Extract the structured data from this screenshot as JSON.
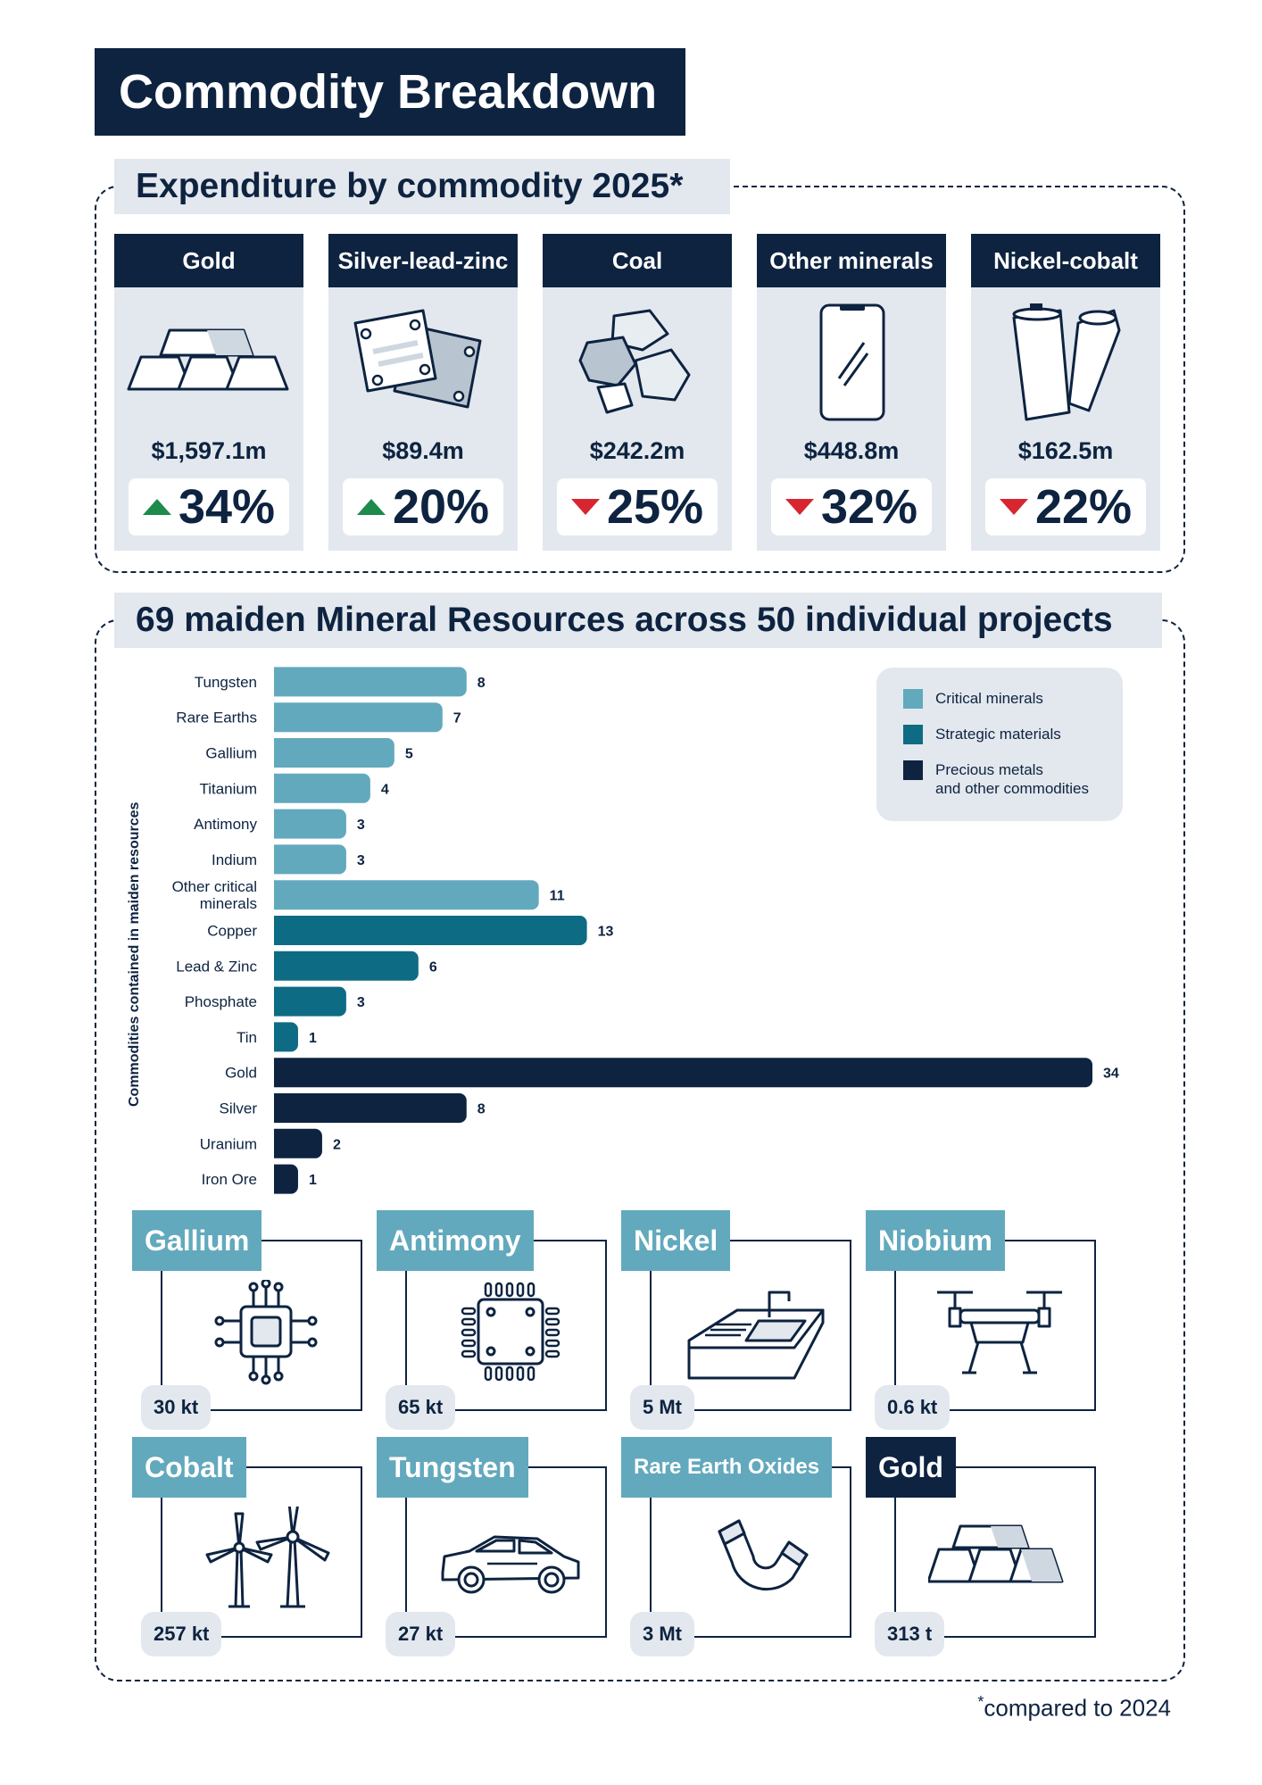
{
  "title": "Commodity Breakdown",
  "expenditure": {
    "title": "Expenditure by commodity 2025",
    "title_mark": "*",
    "cards": [
      {
        "name": "Gold",
        "amount": "$1,597.1m",
        "change": "34%",
        "direction": "up",
        "icon": "gold-bars-icon"
      },
      {
        "name": "Silver-lead-zinc",
        "amount": "$89.4m",
        "change": "20%",
        "direction": "up",
        "icon": "metal-plates-icon"
      },
      {
        "name": "Coal",
        "amount": "$242.2m",
        "change": "25%",
        "direction": "down",
        "icon": "coal-rocks-icon"
      },
      {
        "name": "Other minerals",
        "amount": "$448.8m",
        "change": "32%",
        "direction": "down",
        "icon": "smartphone-icon"
      },
      {
        "name": "Nickel-cobalt",
        "amount": "$162.5m",
        "change": "22%",
        "direction": "down",
        "icon": "batteries-icon"
      }
    ],
    "colors": {
      "up": "#1e8a4c",
      "down": "#d7262f"
    }
  },
  "resources": {
    "title": "69 maiden Mineral Resources across 50 individual projects"
  },
  "chart_data": {
    "type": "bar",
    "orientation": "horizontal",
    "ylabel": "Commodities contained in maiden resources",
    "categories": [
      "Tungsten",
      "Rare Earths",
      "Gallium",
      "Titanium",
      "Antimony",
      "Indium",
      "Other critical minerals",
      "Copper",
      "Lead & Zinc",
      "Phosphate",
      "Tin",
      "Gold",
      "Silver",
      "Uranium",
      "Iron Ore"
    ],
    "category_lines": [
      [
        "Tungsten"
      ],
      [
        "Rare Earths"
      ],
      [
        "Gallium"
      ],
      [
        "Titanium"
      ],
      [
        "Antimony"
      ],
      [
        "Indium"
      ],
      [
        "Other critical",
        "minerals"
      ],
      [
        "Copper"
      ],
      [
        "Lead & Zinc"
      ],
      [
        "Phosphate"
      ],
      [
        "Tin"
      ],
      [
        "Gold"
      ],
      [
        "Silver"
      ],
      [
        "Uranium"
      ],
      [
        "Iron Ore"
      ]
    ],
    "values": [
      8,
      7,
      5,
      4,
      3,
      3,
      11,
      13,
      6,
      3,
      1,
      34,
      8,
      2,
      1
    ],
    "groups": [
      "critical",
      "critical",
      "critical",
      "critical",
      "critical",
      "critical",
      "critical",
      "strategic",
      "strategic",
      "strategic",
      "strategic",
      "precious",
      "precious",
      "precious",
      "precious"
    ],
    "xlim": [
      0,
      34
    ],
    "legend": {
      "position": "top-right",
      "entries": [
        {
          "key": "critical",
          "lines": [
            "Critical minerals"
          ],
          "color": "#62a9bd"
        },
        {
          "key": "strategic",
          "lines": [
            "Strategic materials"
          ],
          "color": "#0e6b84"
        },
        {
          "key": "precious",
          "lines": [
            "Precious metals",
            "and other commodities"
          ],
          "color": "#0d2340"
        }
      ]
    }
  },
  "tiles": [
    {
      "name": "Gallium",
      "qty": "30 kt",
      "style": "light",
      "icon": "microchip-icon"
    },
    {
      "name": "Antimony",
      "qty": "65 kt",
      "style": "light",
      "icon": "processor-icon"
    },
    {
      "name": "Nickel",
      "qty": "5 Mt",
      "style": "light",
      "icon": "sink-icon"
    },
    {
      "name": "Niobium",
      "qty": "0.6 kt",
      "style": "light",
      "icon": "drone-icon"
    },
    {
      "name": "Cobalt",
      "qty": "257 kt",
      "style": "light",
      "icon": "wind-turbines-icon"
    },
    {
      "name": "Tungsten",
      "qty": "27 kt",
      "style": "light",
      "icon": "electric-car-icon"
    },
    {
      "name": "Rare Earth Oxides",
      "qty": "3 Mt",
      "style": "light",
      "icon": "magnet-icon"
    },
    {
      "name": "Gold",
      "qty": "313 t",
      "style": "dark",
      "icon": "gold-bars-icon"
    }
  ],
  "footnote": {
    "mark": "*",
    "text": "compared to 2024"
  }
}
